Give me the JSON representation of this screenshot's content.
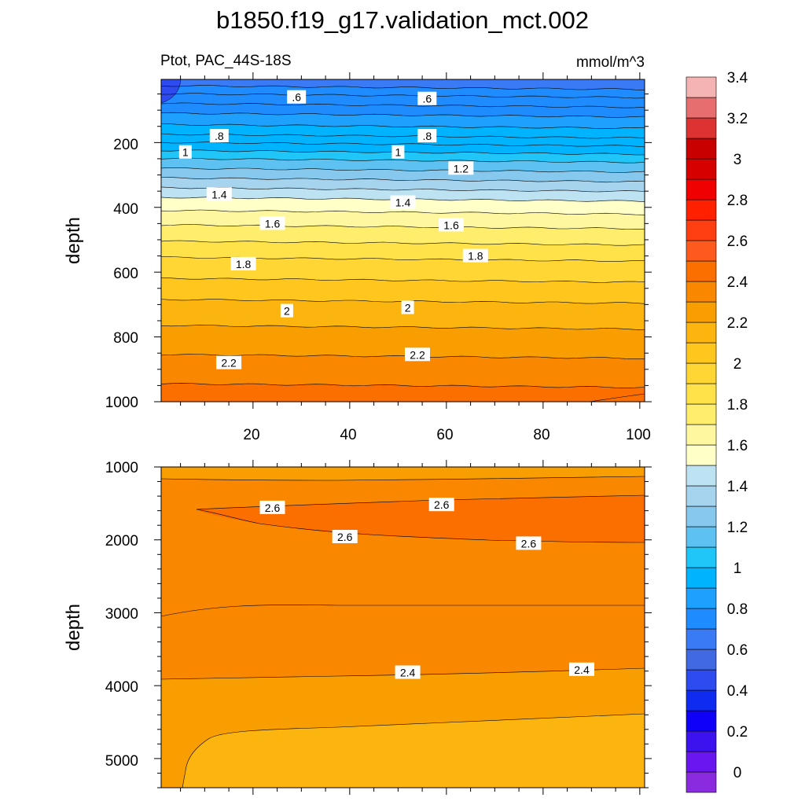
{
  "figure": {
    "title": "b1850.f19_g17.validation_mct.002"
  },
  "chart_data": [
    {
      "type": "heatmap",
      "title": "Ptot, PAC_44S-18S",
      "units": "mmol/m^3",
      "xlabel": "",
      "ylabel": "depth",
      "xlim": [
        1,
        101
      ],
      "ylim": [
        1000,
        5
      ],
      "x_ticks": [
        "20",
        "40",
        "60",
        "80",
        "100"
      ],
      "y_ticks": [
        "200",
        "400",
        "600",
        "800",
        "1000"
      ],
      "isoline_depths": [
        {
          "level": 0.6,
          "y": 30
        },
        {
          "level": 0.65,
          "y": 55
        },
        {
          "level": 0.7,
          "y": 85
        },
        {
          "level": 0.75,
          "y": 115
        },
        {
          "level": 0.8,
          "y": 150
        },
        {
          "level": 0.85,
          "y": 180
        },
        {
          "level": 0.9,
          "y": 205
        },
        {
          "level": 0.95,
          "y": 230
        },
        {
          "level": 1.0,
          "y": 255
        },
        {
          "level": 1.1,
          "y": 285
        },
        {
          "level": 1.2,
          "y": 315
        },
        {
          "level": 1.3,
          "y": 345
        },
        {
          "level": 1.4,
          "y": 375
        },
        {
          "level": 1.5,
          "y": 415
        },
        {
          "level": 1.6,
          "y": 460
        },
        {
          "level": 1.7,
          "y": 510
        },
        {
          "level": 1.8,
          "y": 560
        },
        {
          "level": 1.9,
          "y": 625
        },
        {
          "level": 2.0,
          "y": 690
        },
        {
          "level": 2.1,
          "y": 770
        },
        {
          "level": 2.2,
          "y": 860
        },
        {
          "level": 2.3,
          "y": 950
        }
      ],
      "contour_labels": [
        {
          "text": ".6",
          "x": 29,
          "y": 60
        },
        {
          "text": ".6",
          "x": 56,
          "y": 65
        },
        {
          "text": ".8",
          "x": 13,
          "y": 180
        },
        {
          "text": ".8",
          "x": 56,
          "y": 180
        },
        {
          "text": "1",
          "x": 6,
          "y": 230
        },
        {
          "text": "1",
          "x": 50,
          "y": 230
        },
        {
          "text": "1.2",
          "x": 63,
          "y": 280
        },
        {
          "text": "1.4",
          "x": 13,
          "y": 360
        },
        {
          "text": "1.4",
          "x": 51,
          "y": 385
        },
        {
          "text": "1.6",
          "x": 24,
          "y": 450
        },
        {
          "text": "1.6",
          "x": 61,
          "y": 455
        },
        {
          "text": "1.8",
          "x": 66,
          "y": 550
        },
        {
          "text": "1.8",
          "x": 18,
          "y": 575
        },
        {
          "text": "2",
          "x": 27,
          "y": 720
        },
        {
          "text": "2",
          "x": 52,
          "y": 710
        },
        {
          "text": "2.2",
          "x": 54,
          "y": 855
        },
        {
          "text": "2.2",
          "x": 15,
          "y": 880
        }
      ]
    },
    {
      "type": "heatmap",
      "xlabel": "",
      "ylabel": "depth",
      "xlim": [
        1,
        101
      ],
      "ylim": [
        1000,
        5400
      ],
      "y_ticks": [
        "1000",
        "2000",
        "3000",
        "4000",
        "5000"
      ],
      "regions": [
        {
          "level": 2.3,
          "color": "#FCB40F"
        },
        {
          "level": 2.4,
          "color": "#F99E00"
        },
        {
          "level": 2.5,
          "color": "#F98700"
        },
        {
          "level": 2.6,
          "color": "#FB6E00"
        }
      ],
      "contour_labels": [
        {
          "text": "2.6",
          "x": 24,
          "y": 1560
        },
        {
          "text": "2.6",
          "x": 59,
          "y": 1520
        },
        {
          "text": "2.6",
          "x": 39,
          "y": 1960
        },
        {
          "text": "2.6",
          "x": 77,
          "y": 2050
        },
        {
          "text": "2.4",
          "x": 52,
          "y": 3820
        },
        {
          "text": "2.4",
          "x": 88,
          "y": 3780
        }
      ]
    }
  ],
  "colorbar": {
    "colors": [
      "#8B2BE0",
      "#6A16EE",
      "#3C12EE",
      "#0F00F8",
      "#0F2BF0",
      "#2E4BF0",
      "#4169E1",
      "#3A7BF5",
      "#1E8CFF",
      "#1EA0FF",
      "#00B3FF",
      "#20C6F8",
      "#5DC2F2",
      "#86C8EE",
      "#A6D4EE",
      "#BDE2F2",
      "#FFFFC8",
      "#FFF7A0",
      "#FFEE6C",
      "#FFE24A",
      "#FFD633",
      "#FFC61E",
      "#FCB40F",
      "#F99E00",
      "#F98700",
      "#FB6E00",
      "#FF5A1E",
      "#FF3E12",
      "#FF2000",
      "#F00000",
      "#D70000",
      "#C80000",
      "#DC3232",
      "#E66E6E",
      "#F5B4B4"
    ],
    "labels": [
      {
        "text": "0",
        "index": 1
      },
      {
        "text": "0.2",
        "index": 3
      },
      {
        "text": "0.4",
        "index": 5
      },
      {
        "text": "0.6",
        "index": 7
      },
      {
        "text": "0.8",
        "index": 9
      },
      {
        "text": "1",
        "index": 11
      },
      {
        "text": "1.2",
        "index": 13
      },
      {
        "text": "1.4",
        "index": 15
      },
      {
        "text": "1.6",
        "index": 17
      },
      {
        "text": "1.8",
        "index": 19
      },
      {
        "text": "2",
        "index": 21
      },
      {
        "text": "2.2",
        "index": 23
      },
      {
        "text": "2.4",
        "index": 25
      },
      {
        "text": "2.6",
        "index": 27
      },
      {
        "text": "2.8",
        "index": 29
      },
      {
        "text": "3",
        "index": 31
      },
      {
        "text": "3.2",
        "index": 33
      },
      {
        "text": "3.4",
        "index": 35
      }
    ]
  }
}
